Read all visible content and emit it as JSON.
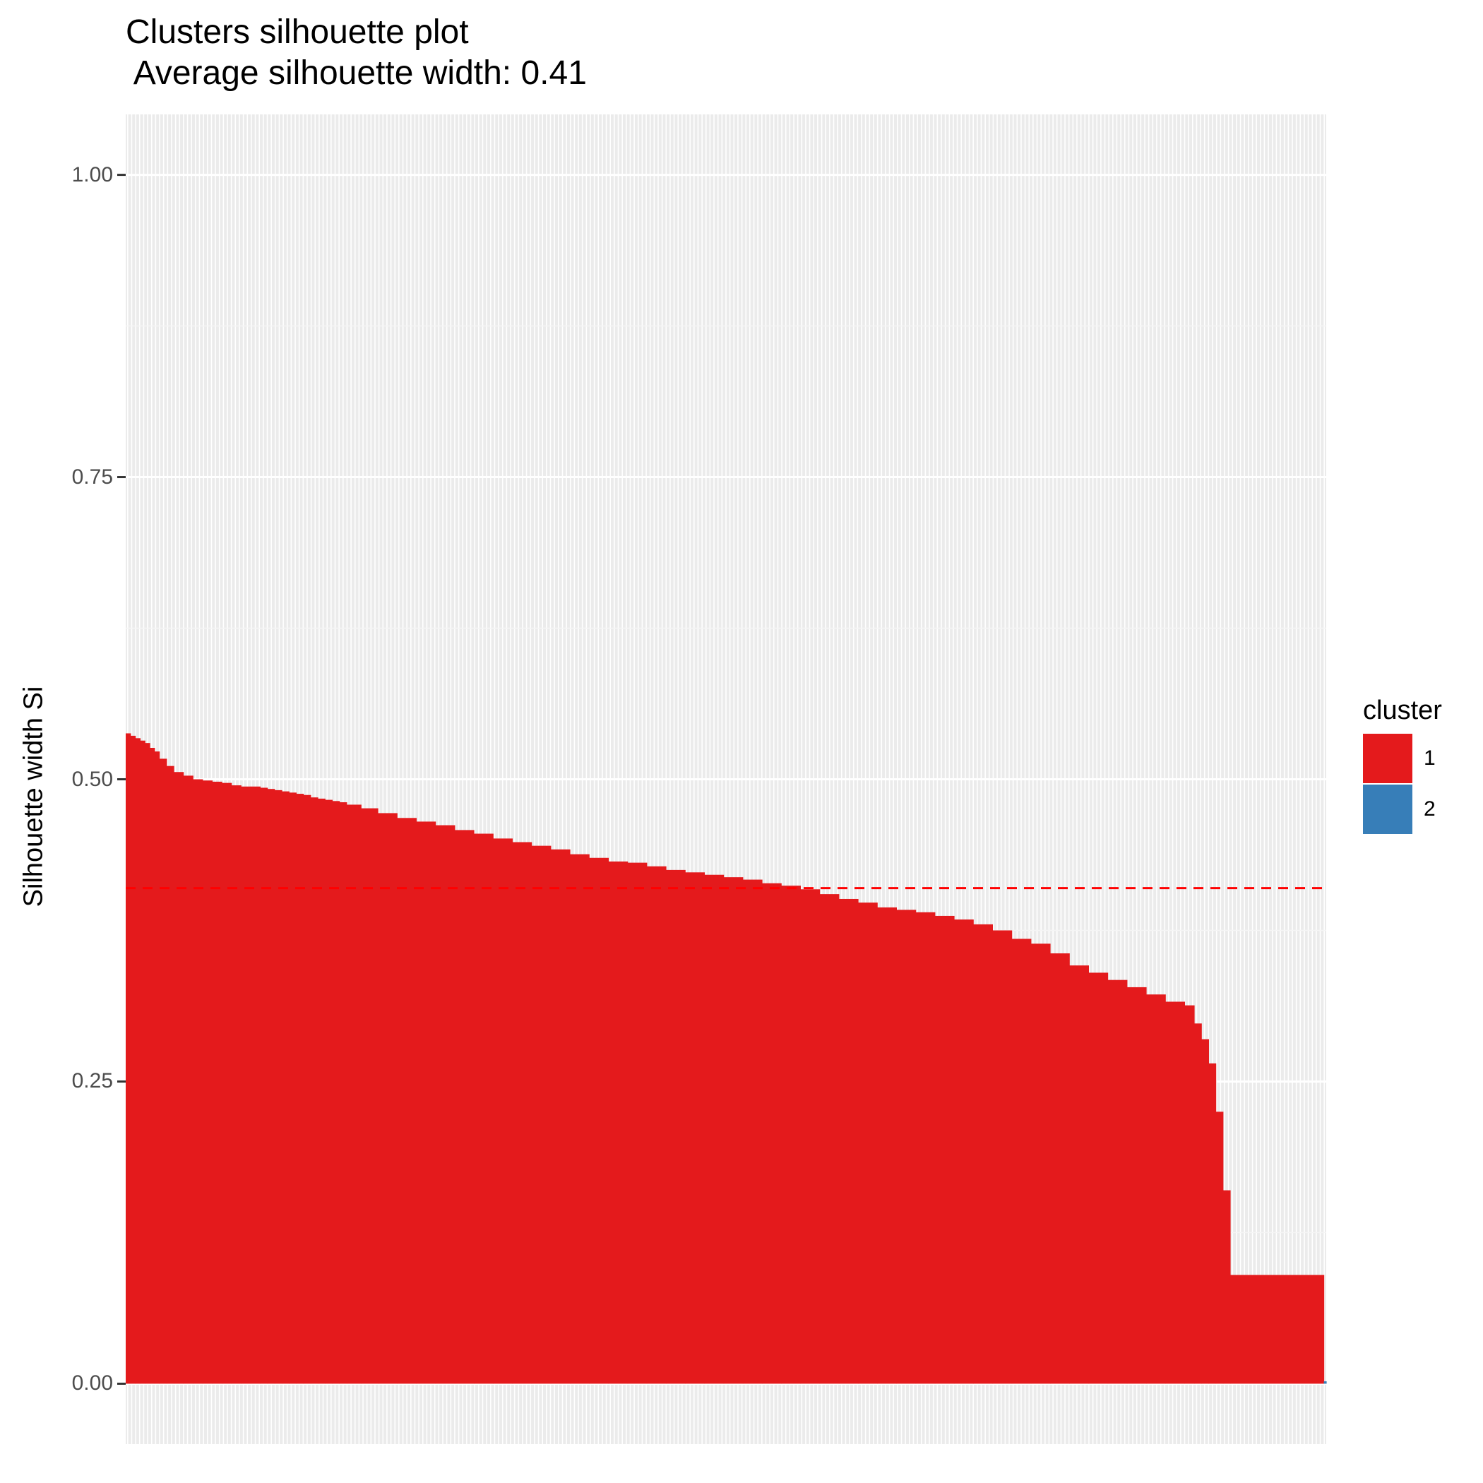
{
  "chart_data": {
    "type": "bar",
    "title": "Clusters silhouette plot",
    "subtitle": " Average silhouette width: 0.41",
    "xlabel": "",
    "ylabel": "Silhouette width Si",
    "ylim": [
      -0.05,
      1.05
    ],
    "yticks": [
      "0.00",
      "0.25",
      "0.50",
      "0.75",
      "1.00"
    ],
    "grid": true,
    "legend_position": "right",
    "legend_title": "cluster",
    "average_line": 0.41,
    "average_line_color": "#ff0000",
    "background": "#ebebeb",
    "series": [
      {
        "name": "1",
        "color": "#e41a1c",
        "n": 300,
        "values": [
          0.538,
          0.536,
          0.534,
          0.532,
          0.53,
          0.526,
          0.523,
          0.517,
          0.511,
          0.506,
          0.503,
          0.5,
          0.499,
          0.498,
          0.497,
          0.495,
          0.494,
          0.494,
          0.493,
          0.492,
          0.491,
          0.49,
          0.489,
          0.488,
          0.487,
          0.485,
          0.484,
          0.483,
          0.482,
          0.481,
          0.479,
          0.476,
          0.472,
          0.468,
          0.465,
          0.462,
          0.458,
          0.455,
          0.451,
          0.448,
          0.445,
          0.442,
          0.438,
          0.435,
          0.432,
          0.431,
          0.428,
          0.425,
          0.423,
          0.421,
          0.419,
          0.417,
          0.414,
          0.412,
          0.409,
          0.405,
          0.401,
          0.398,
          0.394,
          0.392,
          0.39,
          0.387,
          0.384,
          0.38,
          0.375,
          0.368,
          0.364,
          0.356,
          0.346,
          0.34,
          0.334,
          0.328,
          0.322,
          0.316,
          0.313,
          0.298,
          0.285,
          0.265,
          0.225,
          0.16,
          0.09
        ],
        "x_fraction": [
          0.0,
          0.004,
          0.008,
          0.012,
          0.016,
          0.02,
          0.024,
          0.028,
          0.034,
          0.04,
          0.048,
          0.056,
          0.064,
          0.072,
          0.08,
          0.088,
          0.096,
          0.104,
          0.112,
          0.118,
          0.124,
          0.13,
          0.136,
          0.142,
          0.148,
          0.154,
          0.16,
          0.166,
          0.172,
          0.178,
          0.184,
          0.196,
          0.21,
          0.226,
          0.242,
          0.258,
          0.274,
          0.29,
          0.306,
          0.322,
          0.338,
          0.354,
          0.37,
          0.386,
          0.402,
          0.418,
          0.434,
          0.45,
          0.466,
          0.482,
          0.498,
          0.514,
          0.53,
          0.546,
          0.562,
          0.578,
          0.594,
          0.61,
          0.626,
          0.642,
          0.658,
          0.674,
          0.69,
          0.706,
          0.722,
          0.738,
          0.754,
          0.77,
          0.786,
          0.802,
          0.818,
          0.834,
          0.85,
          0.866,
          0.882,
          0.89,
          0.896,
          0.902,
          0.908,
          0.914,
          0.92
        ]
      },
      {
        "name": "2",
        "color": "#377eb8",
        "n": 1,
        "values": [
          0.002
        ],
        "x_fraction": [
          0.998
        ]
      }
    ]
  }
}
